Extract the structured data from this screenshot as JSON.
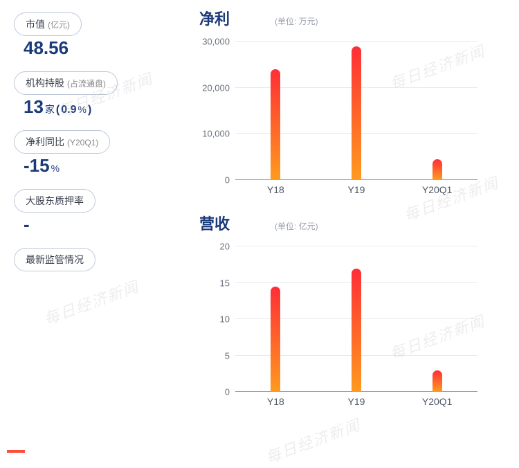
{
  "watermark_text": "每日经济新闻",
  "left": {
    "market_cap": {
      "label": "市值",
      "label_sub": "(亿元)",
      "value": "48.56"
    },
    "inst_hold": {
      "label": "机构持股",
      "label_sub": "(占流通盘)",
      "value": "13",
      "unit": "家",
      "pct": "0.9",
      "pct_unit": "%"
    },
    "profit_yoy": {
      "label": "净利同比",
      "label_sub": "(Y20Q1)",
      "value": "-15",
      "unit": "%"
    },
    "pledge": {
      "label": "大股东质押率",
      "value": "-"
    },
    "regulatory": {
      "label": "最新监管情况"
    }
  },
  "charts": {
    "profit": {
      "title": "净利",
      "unit_label": "(单位: 万元)",
      "type": "bar",
      "categories": [
        "Y18",
        "Y19",
        "Y20Q1"
      ],
      "values": [
        24000,
        29000,
        4500
      ],
      "ymax": 30000,
      "ytick_step": 10000,
      "ytick_labels": [
        "0",
        "10,000",
        "20,000",
        "30,000"
      ],
      "bar_gradient_top": "#ff2e36",
      "bar_gradient_bottom": "#ff9a1f",
      "axis_color": "#9ca3af",
      "label_color": "#4b5563"
    },
    "revenue": {
      "title": "营收",
      "unit_label": "(单位: 亿元)",
      "type": "bar",
      "categories": [
        "Y18",
        "Y19",
        "Y20Q1"
      ],
      "values": [
        14.5,
        17,
        3
      ],
      "ymax": 20,
      "ytick_step": 5,
      "ytick_labels": [
        "0",
        "5",
        "10",
        "15",
        "20"
      ],
      "bar_gradient_top": "#ff2e36",
      "bar_gradient_bottom": "#ff9a1f",
      "axis_color": "#9ca3af",
      "label_color": "#4b5563"
    }
  }
}
